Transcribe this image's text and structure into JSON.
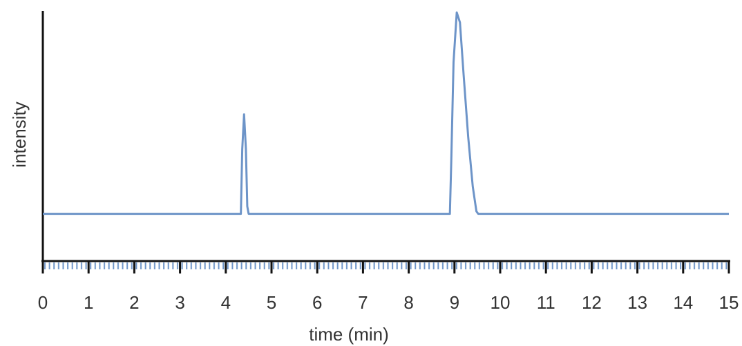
{
  "chart_data": {
    "type": "line",
    "x_label": "time (min)",
    "y_label": "intensity",
    "x": [
      0,
      4.33,
      4.36,
      4.4,
      4.44,
      4.47,
      4.5,
      8.9,
      8.93,
      8.98,
      9.05,
      9.12,
      9.2,
      9.3,
      9.4,
      9.48,
      9.52,
      15
    ],
    "series": [
      {
        "color": "#6d94c8",
        "values": [
          1.9,
          1.9,
          4.5,
          5.9,
          4.5,
          2.2,
          1.9,
          1.9,
          4,
          8,
          10,
          9.6,
          7.5,
          5,
          3,
          2,
          1.9,
          1.9
        ]
      }
    ],
    "xlim": [
      0,
      15
    ],
    "xticks": [
      0,
      1,
      2,
      3,
      4,
      5,
      6,
      7,
      8,
      9,
      10,
      11,
      12,
      13,
      14,
      15
    ],
    "ylim": [
      0,
      10
    ],
    "grid": false
  }
}
